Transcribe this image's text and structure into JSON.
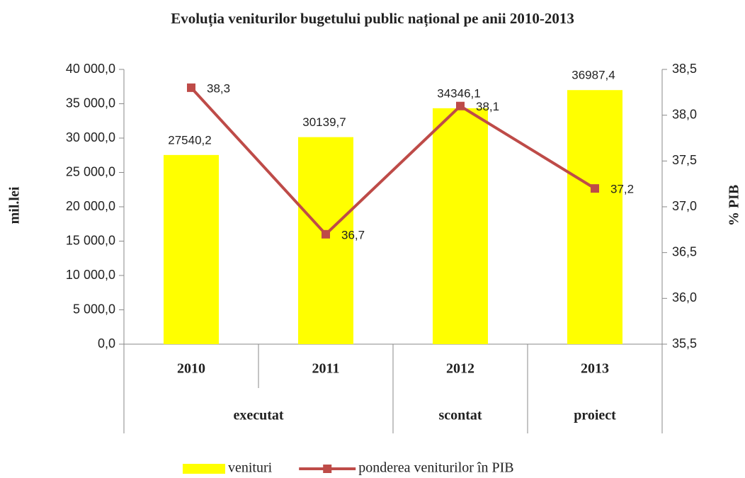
{
  "chart_data": {
    "type": "bar",
    "title": "Evoluția veniturilor bugetului public național pe anii 2010-2013",
    "ylabel": "mil.lei",
    "y2label": "% PIB",
    "categories": [
      "2010",
      "2011",
      "2012",
      "2013"
    ],
    "groups": [
      {
        "label": "executat",
        "span": 2
      },
      {
        "label": "scontat",
        "span": 1
      },
      {
        "label": "proiect",
        "span": 1
      }
    ],
    "series": [
      {
        "name": "venituri",
        "type": "bar",
        "color": "#ffff00",
        "axis": "y",
        "values": [
          27540.2,
          30139.7,
          34346.1,
          36987.4
        ],
        "value_labels": [
          "27540,2",
          "30139,7",
          "34346,1",
          "36987,4"
        ]
      },
      {
        "name": "ponderea veniturilor  în PIB",
        "type": "line",
        "color": "#be4b48",
        "axis": "y2",
        "values": [
          38.3,
          36.7,
          38.1,
          37.2
        ],
        "value_labels": [
          "38,3",
          "36,7",
          "38,1",
          "37,2"
        ]
      }
    ],
    "ylim": [
      0,
      40000
    ],
    "yticks": [
      {
        "value": 0,
        "label": "0,0"
      },
      {
        "value": 5000,
        "label": "5 000,0"
      },
      {
        "value": 10000,
        "label": "10 000,0"
      },
      {
        "value": 15000,
        "label": "15 000,0"
      },
      {
        "value": 20000,
        "label": "20 000,0"
      },
      {
        "value": 25000,
        "label": "25 000,0"
      },
      {
        "value": 30000,
        "label": "30 000,0"
      },
      {
        "value": 35000,
        "label": "35 000,0"
      },
      {
        "value": 40000,
        "label": "40 000,0"
      }
    ],
    "y2lim": [
      35.5,
      38.5
    ],
    "y2ticks": [
      {
        "value": 35.5,
        "label": "35,5"
      },
      {
        "value": 36,
        "label": "36,0"
      },
      {
        "value": 36.5,
        "label": "36,5"
      },
      {
        "value": 37,
        "label": "37,0"
      },
      {
        "value": 37.5,
        "label": "37,5"
      },
      {
        "value": 38,
        "label": "38,0"
      },
      {
        "value": 38.5,
        "label": "38,5"
      }
    ],
    "legend": "bottom"
  }
}
